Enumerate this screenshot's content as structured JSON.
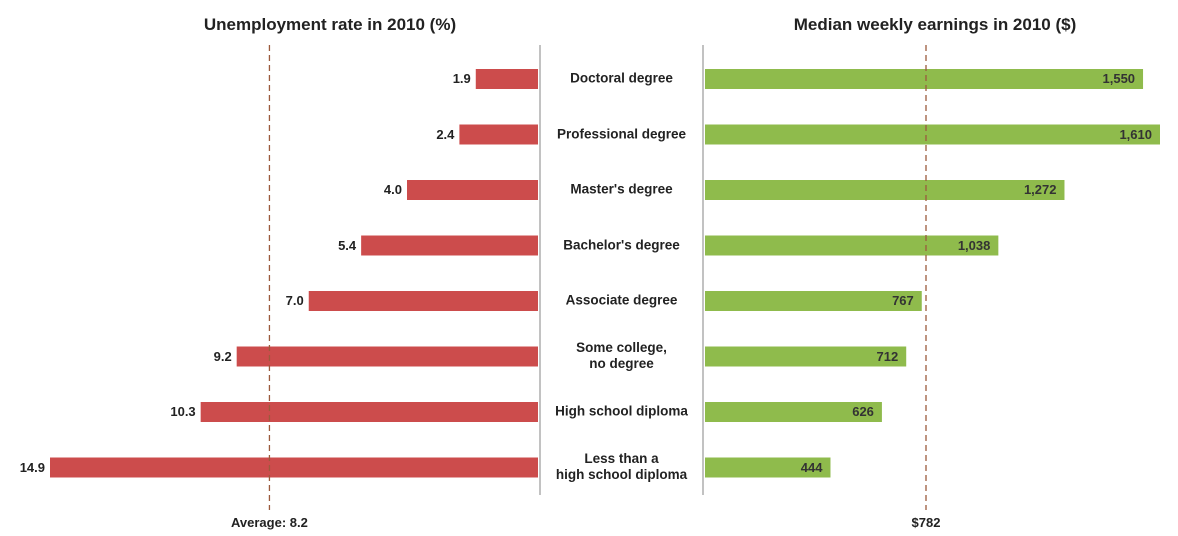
{
  "chart_data": [
    {
      "type": "bar",
      "orientation": "horizontal",
      "direction": "left",
      "title": "Unemployment rate in 2010 (%)",
      "categories": [
        "Doctoral degree",
        "Professional degree",
        "Master's degree",
        "Bachelor's degree",
        "Associate degree",
        "Some college,\nno degree",
        "High school diploma",
        "Less than a\nhigh school diploma"
      ],
      "values": [
        1.9,
        2.4,
        4.0,
        5.4,
        7.0,
        9.2,
        10.3,
        14.9
      ],
      "value_labels": [
        "1.9",
        "2.4",
        "4.0",
        "5.4",
        "7.0",
        "9.2",
        "10.3",
        "14.9"
      ],
      "color": "#cc4c4c",
      "reference": {
        "value": 8.2,
        "label": "Average: 8.2"
      }
    },
    {
      "type": "bar",
      "orientation": "horizontal",
      "direction": "right",
      "title": "Median weekly earnings in 2010 ($)",
      "values": [
        1550,
        1610,
        1272,
        1038,
        767,
        712,
        626,
        444
      ],
      "value_labels": [
        "1,550",
        "1,610",
        "1,272",
        "1,038",
        "767",
        "712",
        "626",
        "444"
      ],
      "color": "#8fbb4c",
      "reference": {
        "value": 782,
        "label": "$782"
      }
    }
  ]
}
